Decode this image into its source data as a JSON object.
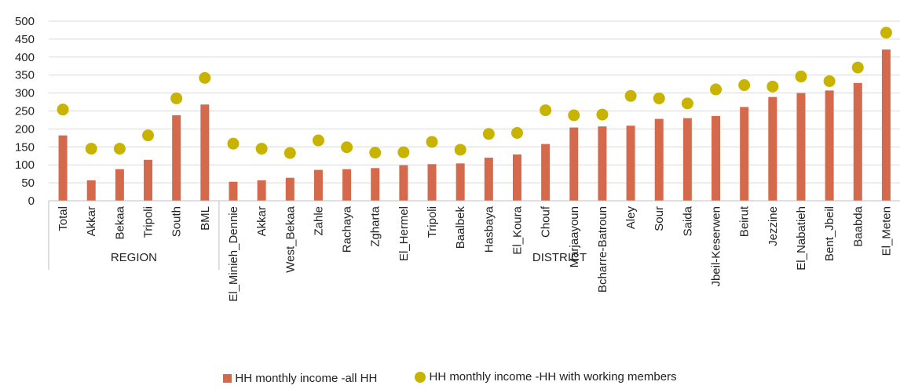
{
  "chart_data": {
    "type": "bar",
    "title": "",
    "xlabel": "",
    "ylabel": "",
    "ylim": [
      0,
      500
    ],
    "yticks": [
      0,
      50,
      100,
      150,
      200,
      250,
      300,
      350,
      400,
      450,
      500
    ],
    "grid": true,
    "legend_position": "bottom",
    "groups": [
      {
        "label": "REGION",
        "count": 6
      },
      {
        "label": "DISTRICT",
        "count": 24
      }
    ],
    "categories": [
      "Total",
      "Akkar",
      "Bekaa",
      "Tripoli",
      "South",
      "BML",
      "El_Minieh_Dennie",
      "Akkar",
      "West_Bekaa",
      "Zahle",
      "Rachaya",
      "Zgharta",
      "El_Hermel",
      "Tripoli",
      "Baalbek",
      "Hasbaya",
      "El_Koura",
      "Chouf",
      "Marjaayoun",
      "Bcharre-Batroun",
      "Aley",
      "Sour",
      "Saida",
      "Jbeil-Keserwen",
      "Beirut",
      "Jezzine",
      "El_Nabatieh",
      "Bent_Jbeil",
      "Baabda",
      "El_Meten"
    ],
    "series": [
      {
        "name": "HH monthly income -all HH",
        "type": "bar",
        "color": "#d4694b",
        "values": [
          182,
          57,
          88,
          114,
          238,
          268,
          53,
          57,
          64,
          86,
          88,
          91,
          99,
          102,
          104,
          120,
          129,
          158,
          204,
          207,
          209,
          228,
          230,
          236,
          261,
          289,
          300,
          307,
          328,
          421
        ]
      },
      {
        "name": "HH monthly income -HH with working members",
        "type": "scatter",
        "color": "#c8b400",
        "values": [
          254,
          145,
          145,
          182,
          285,
          342,
          159,
          145,
          133,
          168,
          149,
          134,
          135,
          164,
          142,
          186,
          189,
          252,
          238,
          240,
          292,
          285,
          271,
          310,
          322,
          318,
          346,
          333,
          371,
          468
        ]
      }
    ]
  }
}
